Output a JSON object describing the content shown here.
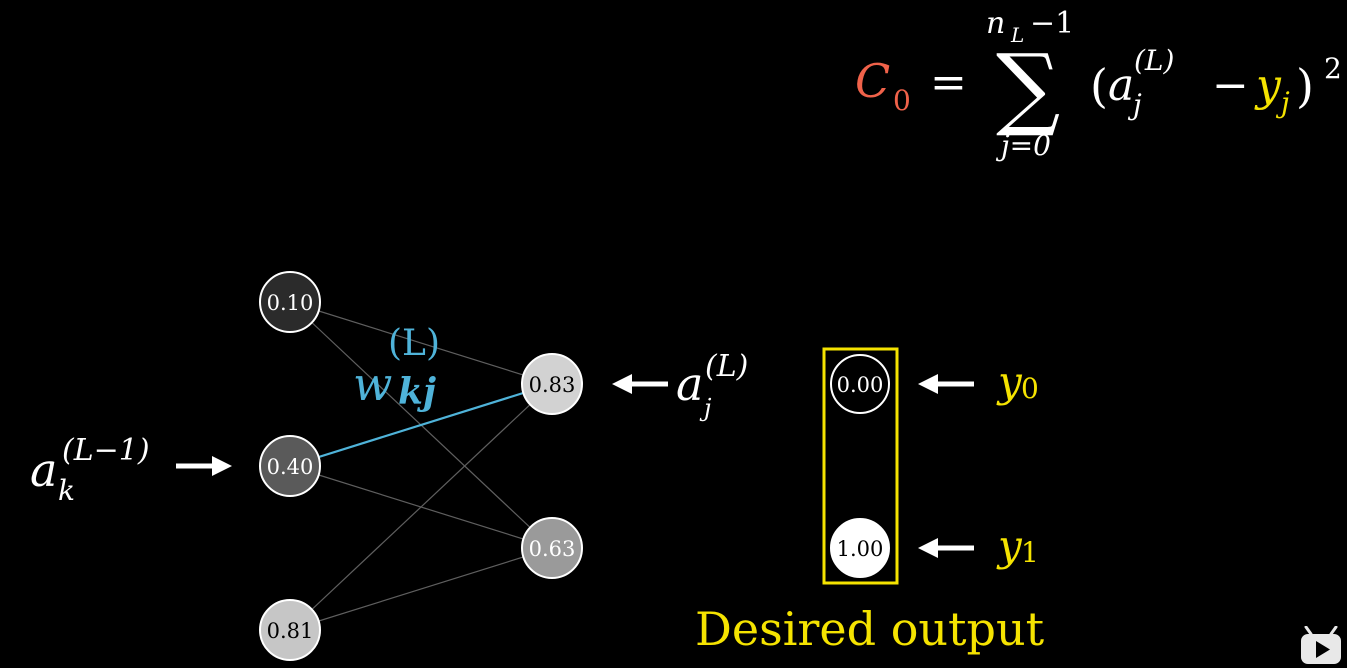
{
  "colors": {
    "background": "#000000",
    "cost": "#f0624a",
    "target": "#f5e300",
    "weight": "#4fb3d9",
    "node_stroke": "#ffffff",
    "edge": "#6b6b6b"
  },
  "formula": {
    "cost_symbol": "C",
    "cost_sub": "0",
    "equals": "=",
    "sum_upper": "n",
    "sum_upper_sub": "L",
    "sum_upper_rest": "−1",
    "sum_sign": "∑",
    "sum_lower": "j=0",
    "open_paren": "(",
    "a": "a",
    "a_sup": "(L)",
    "a_sub": "j",
    "minus": "−",
    "y": "y",
    "y_sub": "j",
    "close_paren": ")",
    "power": "2"
  },
  "network": {
    "prev_layer": [
      {
        "value": "0.10",
        "fill": "#2b2b2b"
      },
      {
        "value": "0.40",
        "fill": "#5a5a5a"
      },
      {
        "value": "0.81",
        "fill": "#c6c6c6"
      }
    ],
    "output_layer": [
      {
        "value": "0.83",
        "fill": "#d2d2d2"
      },
      {
        "value": "0.63",
        "fill": "#9a9a9a"
      }
    ],
    "weight_label": {
      "w": "w",
      "sup": "(L)",
      "sub": "kj"
    },
    "input_label": {
      "a": "a",
      "sup": "(L−1)",
      "sub": "k",
      "arrow": "⟶"
    },
    "output_label": {
      "a": "a",
      "sup": "(L)",
      "sub": "j",
      "arrow": "⟵"
    }
  },
  "desired": {
    "values": [
      {
        "value": "0.00",
        "fill": "#000000",
        "label": "y",
        "sub": "0"
      },
      {
        "value": "1.00",
        "fill": "#ffffff",
        "label": "y",
        "sub": "1"
      }
    ],
    "caption": "Desired output"
  }
}
